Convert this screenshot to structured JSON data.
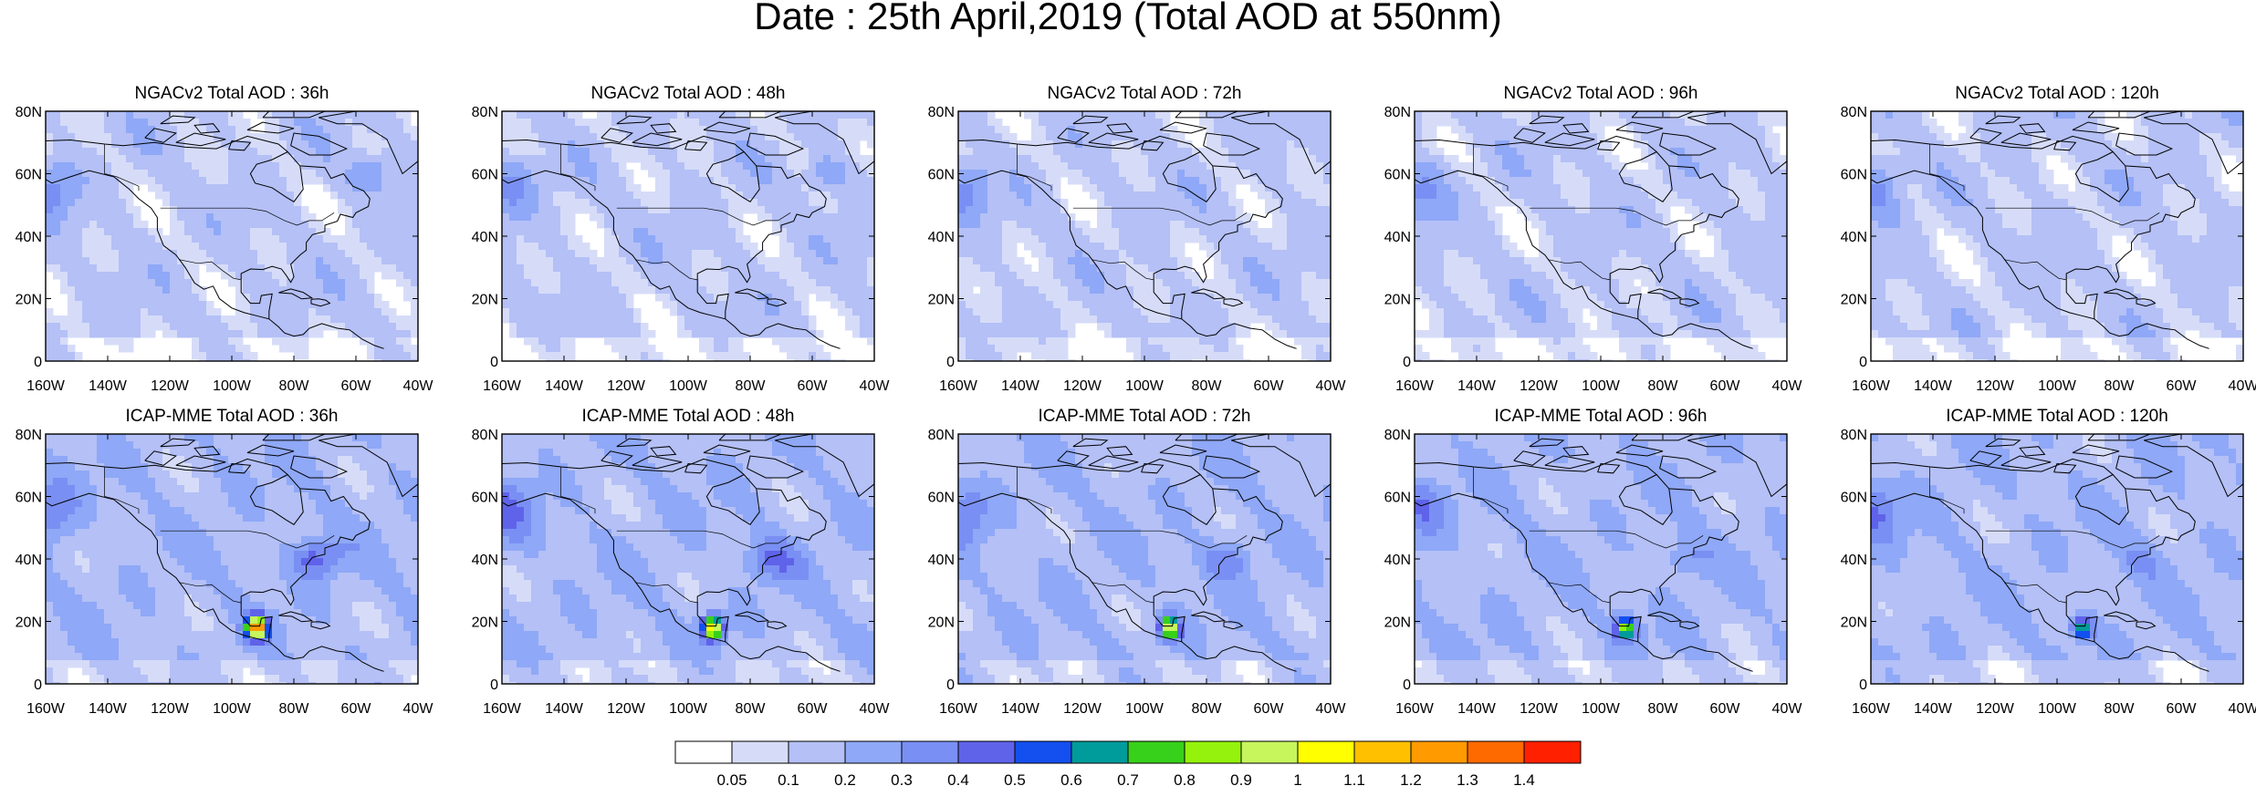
{
  "title": "Date : 25th April,2019 (Total AOD at 550nm)",
  "rows": [
    {
      "model": "NGACv2",
      "panels": [
        {
          "title": "NGACv2 Total AOD : 36h"
        },
        {
          "title": "NGACv2 Total AOD : 48h"
        },
        {
          "title": "NGACv2 Total AOD : 72h"
        },
        {
          "title": "NGACv2 Total AOD : 96h"
        },
        {
          "title": "NGACv2 Total AOD : 120h"
        }
      ]
    },
    {
      "model": "ICAP-MME",
      "panels": [
        {
          "title": "ICAP-MME Total AOD : 36h"
        },
        {
          "title": "ICAP-MME Total AOD : 48h"
        },
        {
          "title": "ICAP-MME Total AOD : 72h"
        },
        {
          "title": "ICAP-MME Total AOD : 96h"
        },
        {
          "title": "ICAP-MME Total AOD : 120h"
        }
      ]
    }
  ],
  "x_ticks": [
    "160W",
    "140W",
    "120W",
    "100W",
    "80W",
    "60W",
    "40W"
  ],
  "y_ticks": [
    "0",
    "20N",
    "40N",
    "60N",
    "80N"
  ],
  "map_extent": {
    "lon": [
      -160,
      -40
    ],
    "lat": [
      0,
      80
    ]
  },
  "colorbar": {
    "labels": [
      "0.05",
      "0.1",
      "0.2",
      "0.3",
      "0.4",
      "0.5",
      "0.6",
      "0.7",
      "0.8",
      "0.9",
      "1",
      "1.1",
      "1.2",
      "1.3",
      "1.4"
    ],
    "colors": [
      "#ffffff",
      "#d6dcf8",
      "#b4c0f6",
      "#8fa8f7",
      "#7a8ff3",
      "#5f63ea",
      "#1450f0",
      "#009b9b",
      "#37d01a",
      "#94f20c",
      "#c6f55c",
      "#ffff00",
      "#ffc000",
      "#ff9a00",
      "#ff6a00",
      "#ff2000"
    ]
  }
}
